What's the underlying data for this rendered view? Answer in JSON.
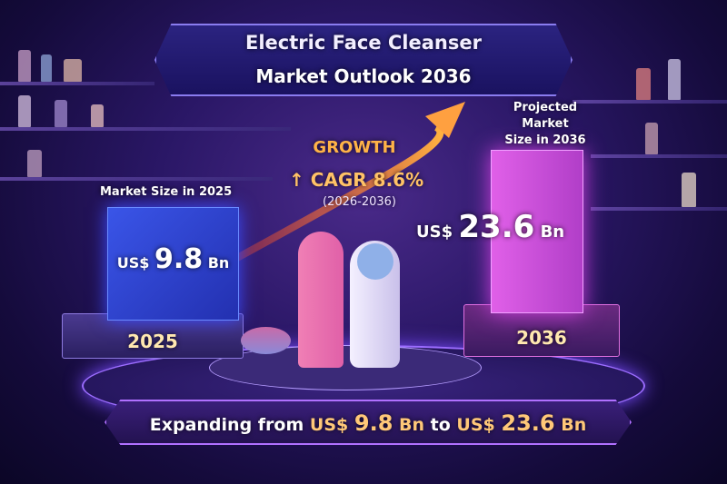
{
  "title": {
    "line1": "Electric Face Cleanser",
    "line2": "Market Outlook 2036"
  },
  "growth": {
    "label": "GROWTH",
    "arrow_icon": "↑",
    "cagr": "CAGR 8.6%",
    "period": "(2026-2036)"
  },
  "market_2025": {
    "label": "Market Size in 2025",
    "currency": "US$",
    "value": "9.8",
    "unit": "Bn",
    "year": "2025"
  },
  "market_2036": {
    "label_line1": "Projected Market",
    "label_line2": "Size in 2036",
    "currency": "US$",
    "value": "23.6",
    "unit": "Bn",
    "year": "2036"
  },
  "footer": {
    "prefix": "Expanding from",
    "from_currency": "US$",
    "from_value": "9.8",
    "from_unit": "Bn",
    "connector": "to",
    "to_currency": "US$",
    "to_value": "23.6",
    "to_unit": "Bn"
  },
  "colors": {
    "accent_orange": "#ffb347",
    "box_2025": "#2f45d8",
    "box_2036": "#d050e0",
    "background": "#1d1150"
  }
}
